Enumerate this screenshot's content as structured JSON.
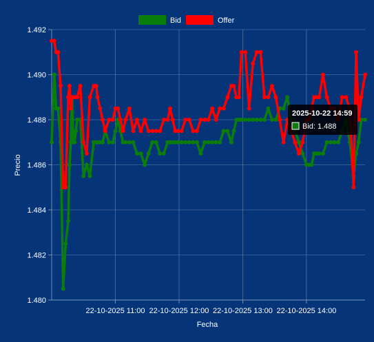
{
  "chart_data": {
    "type": "line",
    "title": "",
    "xlabel": "Fecha",
    "ylabel": "Precio",
    "ylim": [
      1.48,
      1.492
    ],
    "y_ticks": [
      "1.480",
      "1.482",
      "1.484",
      "1.486",
      "1.488",
      "1.490",
      "1.492"
    ],
    "x_tick_labels": [
      "22-10-2025 11:00",
      "22-10-2025 12:00",
      "22-10-2025 13:00",
      "22-10-2025 14:00"
    ],
    "x_tick_hours": [
      11,
      12,
      13,
      14
    ],
    "xlim_hours": [
      10.0,
      14.92
    ],
    "grid": true,
    "legend_position": "top-center",
    "series": [
      {
        "name": "Bid",
        "color": "#0a7d0a",
        "x_hours": [
          10.0,
          10.04,
          10.07,
          10.1,
          10.14,
          10.18,
          10.22,
          10.26,
          10.28,
          10.3,
          10.32,
          10.34,
          10.36,
          10.38,
          10.4,
          10.45,
          10.5,
          10.55,
          10.6,
          10.66,
          10.7,
          10.72,
          10.76,
          10.8,
          10.84,
          10.9,
          10.96,
          11.0,
          11.04,
          11.08,
          11.12,
          11.16,
          11.22,
          11.28,
          11.34,
          11.4,
          11.46,
          11.52,
          11.58,
          11.64,
          11.7,
          11.76,
          11.82,
          11.86,
          11.9,
          11.94,
          11.98,
          12.04,
          12.1,
          12.16,
          12.22,
          12.28,
          12.34,
          12.4,
          12.46,
          12.52,
          12.58,
          12.64,
          12.7,
          12.76,
          12.82,
          12.86,
          12.9,
          12.94,
          12.98,
          13.04,
          13.1,
          13.16,
          13.22,
          13.28,
          13.34,
          13.4,
          13.46,
          13.52,
          13.58,
          13.64,
          13.7,
          13.76,
          13.82,
          13.88,
          13.94,
          14.0,
          14.04,
          14.08,
          14.12,
          14.16,
          14.2,
          14.26,
          14.32,
          14.38,
          14.44,
          14.5,
          14.56,
          14.62,
          14.68,
          14.74,
          14.78,
          14.82,
          14.86,
          14.92
        ],
        "values": [
          1.487,
          1.49,
          1.4885,
          1.4885,
          1.487,
          1.4805,
          1.4825,
          1.4835,
          1.486,
          1.487,
          1.489,
          1.487,
          1.487,
          1.4875,
          1.488,
          1.488,
          1.4855,
          1.486,
          1.4855,
          1.487,
          1.487,
          1.487,
          1.487,
          1.487,
          1.4875,
          1.487,
          1.487,
          1.4875,
          1.488,
          1.4875,
          1.487,
          1.487,
          1.487,
          1.487,
          1.4865,
          1.4865,
          1.486,
          1.4865,
          1.487,
          1.487,
          1.4865,
          1.4865,
          1.487,
          1.487,
          1.487,
          1.487,
          1.487,
          1.487,
          1.487,
          1.487,
          1.487,
          1.487,
          1.4865,
          1.487,
          1.487,
          1.487,
          1.487,
          1.487,
          1.4875,
          1.4875,
          1.487,
          1.4875,
          1.488,
          1.488,
          1.488,
          1.488,
          1.488,
          1.488,
          1.488,
          1.488,
          1.488,
          1.4885,
          1.488,
          1.488,
          1.4885,
          1.4885,
          1.489,
          1.488,
          1.4875,
          1.487,
          1.4865,
          1.486,
          1.486,
          1.486,
          1.4865,
          1.4865,
          1.4865,
          1.4865,
          1.487,
          1.487,
          1.487,
          1.487,
          1.4875,
          1.488,
          1.487,
          1.4855,
          1.4865,
          1.487,
          1.488,
          1.488
        ]
      },
      {
        "name": "Offer",
        "color": "#ff0000",
        "x_hours": [
          10.0,
          10.04,
          10.07,
          10.1,
          10.14,
          10.18,
          10.22,
          10.26,
          10.28,
          10.3,
          10.32,
          10.34,
          10.36,
          10.38,
          10.4,
          10.45,
          10.5,
          10.55,
          10.6,
          10.66,
          10.7,
          10.72,
          10.76,
          10.8,
          10.84,
          10.9,
          10.96,
          11.0,
          11.04,
          11.08,
          11.12,
          11.16,
          11.22,
          11.28,
          11.34,
          11.4,
          11.46,
          11.52,
          11.58,
          11.64,
          11.7,
          11.76,
          11.82,
          11.86,
          11.9,
          11.94,
          11.98,
          12.04,
          12.1,
          12.16,
          12.22,
          12.28,
          12.34,
          12.4,
          12.46,
          12.52,
          12.58,
          12.64,
          12.7,
          12.76,
          12.82,
          12.86,
          12.9,
          12.94,
          12.98,
          13.04,
          13.1,
          13.16,
          13.22,
          13.28,
          13.34,
          13.4,
          13.46,
          13.52,
          13.58,
          13.64,
          13.7,
          13.76,
          13.82,
          13.88,
          13.94,
          14.0,
          14.04,
          14.08,
          14.12,
          14.16,
          14.2,
          14.26,
          14.32,
          14.38,
          14.44,
          14.5,
          14.56,
          14.62,
          14.68,
          14.74,
          14.78,
          14.82,
          14.86,
          14.92
        ],
        "values": [
          1.4915,
          1.4915,
          1.491,
          1.491,
          1.4895,
          1.485,
          1.485,
          1.489,
          1.4895,
          1.4885,
          1.489,
          1.489,
          1.489,
          1.489,
          1.489,
          1.4895,
          1.487,
          1.4865,
          1.489,
          1.4895,
          1.4895,
          1.489,
          1.4885,
          1.488,
          1.4875,
          1.488,
          1.488,
          1.4885,
          1.4885,
          1.488,
          1.4875,
          1.488,
          1.4885,
          1.4875,
          1.488,
          1.4875,
          1.488,
          1.4875,
          1.4875,
          1.4875,
          1.4875,
          1.488,
          1.488,
          1.4885,
          1.488,
          1.4875,
          1.4875,
          1.4875,
          1.488,
          1.488,
          1.4875,
          1.4875,
          1.488,
          1.488,
          1.488,
          1.4885,
          1.488,
          1.4885,
          1.4885,
          1.489,
          1.4895,
          1.4895,
          1.489,
          1.489,
          1.491,
          1.491,
          1.4885,
          1.4905,
          1.491,
          1.491,
          1.489,
          1.489,
          1.4895,
          1.489,
          1.488,
          1.487,
          1.488,
          1.4875,
          1.487,
          1.4865,
          1.487,
          1.488,
          1.488,
          1.4885,
          1.489,
          1.489,
          1.489,
          1.49,
          1.489,
          1.4885,
          1.4885,
          1.488,
          1.489,
          1.489,
          1.4885,
          1.485,
          1.491,
          1.488,
          1.489,
          1.49
        ]
      }
    ],
    "tooltip": {
      "title": "2025-10-22 14:59",
      "label": "Bid: 1.488",
      "color": "#0a7d0a"
    }
  },
  "colors": {
    "background": "#063479",
    "grid": "#8fa6c9",
    "axis": "#ffffff"
  }
}
